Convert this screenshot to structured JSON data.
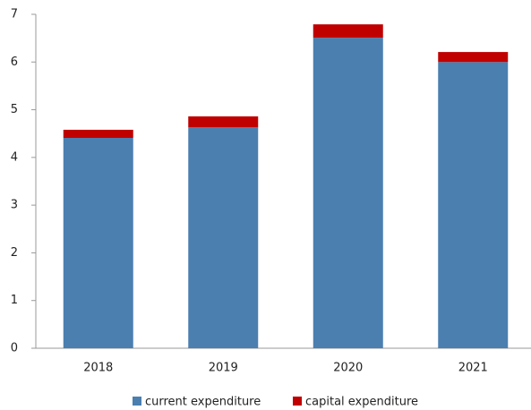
{
  "chart_data": {
    "type": "stacked_bar",
    "categories": [
      "2018",
      "2019",
      "2020",
      "2021"
    ],
    "series": [
      {
        "name": "current expenditure",
        "color": "#4a7fb0",
        "values": [
          4.41,
          4.63,
          6.51,
          6.0
        ]
      },
      {
        "name": "capital expenditure",
        "color": "#c00000",
        "values": [
          0.17,
          0.23,
          0.28,
          0.21
        ]
      }
    ],
    "ylim": [
      0,
      7
    ],
    "yticks": [
      0,
      1,
      2,
      3,
      4,
      5,
      6,
      7
    ],
    "grid": false,
    "legend": "bottom"
  }
}
